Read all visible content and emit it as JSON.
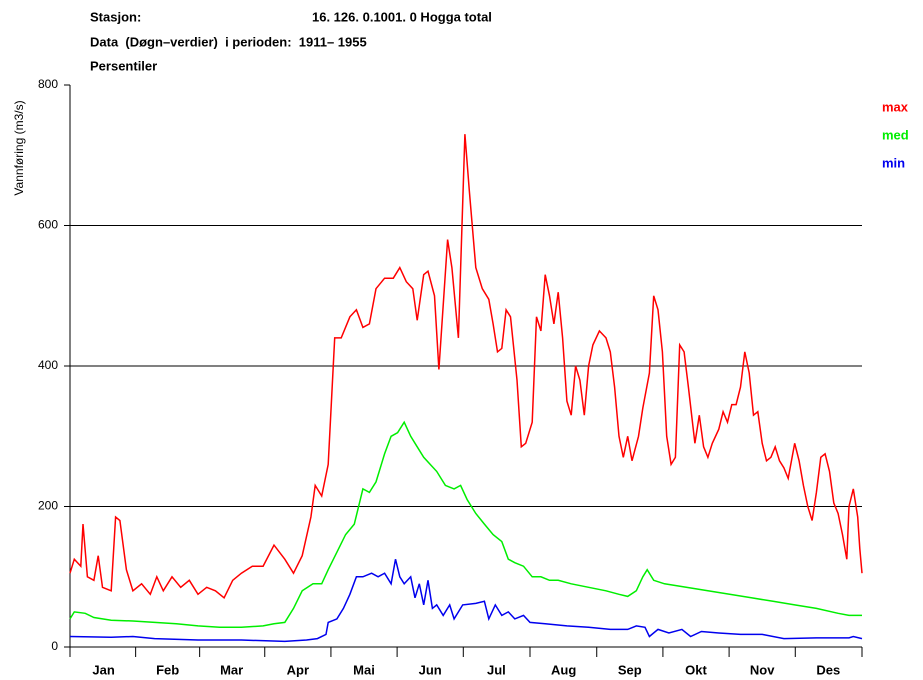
{
  "chart_data": {
    "type": "line",
    "title_lines": [
      [
        "Stasjon:",
        "16. 126. 0.1001. 0 Hogga total"
      ],
      [
        "Data  (Døgn–verdier)  i perioden:  1911– 1955"
      ],
      [
        "Persentiler"
      ]
    ],
    "ylabel": "Vannføring (m3/s)",
    "xlim": [
      1,
      366
    ],
    "ylim": [
      0,
      800
    ],
    "yticks": [
      0,
      200,
      400,
      600,
      800
    ],
    "grid": true,
    "xticks": [
      {
        "value": 16.5,
        "label": "Jan"
      },
      {
        "value": 46,
        "label": "Feb"
      },
      {
        "value": 75.5,
        "label": "Mar"
      },
      {
        "value": 106,
        "label": "Apr"
      },
      {
        "value": 136.5,
        "label": "Mai"
      },
      {
        "value": 167,
        "label": "Jun"
      },
      {
        "value": 197.5,
        "label": "Jul"
      },
      {
        "value": 228.5,
        "label": "Aug"
      },
      {
        "value": 259,
        "label": "Sep"
      },
      {
        "value": 289.5,
        "label": "Okt"
      },
      {
        "value": 320,
        "label": "Nov"
      },
      {
        "value": 350.5,
        "label": "Des"
      }
    ],
    "legend": "right",
    "series": [
      {
        "name": "max",
        "color": "#ff0000",
        "x": [
          1,
          3,
          6,
          7,
          9,
          12,
          14,
          16,
          20,
          22,
          24,
          27,
          30,
          34,
          38,
          41,
          44,
          48,
          52,
          56,
          60,
          64,
          68,
          72,
          76,
          80,
          85,
          90,
          95,
          100,
          104,
          108,
          112,
          114,
          117,
          120,
          123,
          126,
          130,
          133,
          136,
          139,
          142,
          146,
          150,
          153,
          156,
          159,
          161,
          164,
          166,
          169,
          171,
          175,
          177,
          180,
          183,
          185,
          188,
          191,
          194,
          196,
          198,
          200,
          202,
          204,
          207,
          209,
          211,
          214,
          216,
          218,
          220,
          222,
          224,
          226,
          228,
          230,
          232,
          234,
          236,
          238,
          240,
          242,
          245,
          248,
          250,
          252,
          254,
          256,
          258,
          260,
          263,
          265,
          268,
          270,
          272,
          274,
          276,
          278,
          280,
          282,
          284,
          286,
          289,
          291,
          293,
          295,
          297,
          300,
          302,
          304,
          306,
          308,
          310,
          312,
          314,
          316,
          318,
          320,
          322,
          324,
          326,
          328,
          330,
          332,
          335,
          337,
          339,
          341,
          343,
          345,
          347,
          349,
          351,
          353,
          355,
          357,
          359,
          360,
          362,
          364,
          365,
          366
        ],
        "values": [
          105,
          125,
          115,
          175,
          100,
          95,
          130,
          85,
          80,
          185,
          180,
          110,
          80,
          90,
          75,
          100,
          80,
          100,
          85,
          95,
          75,
          85,
          80,
          70,
          95,
          105,
          115,
          115,
          145,
          125,
          105,
          130,
          185,
          230,
          215,
          260,
          440,
          440,
          470,
          480,
          455,
          460,
          510,
          525,
          525,
          540,
          520,
          510,
          465,
          530,
          535,
          500,
          395,
          580,
          540,
          440,
          730,
          650,
          540,
          510,
          495,
          460,
          420,
          425,
          480,
          470,
          380,
          285,
          290,
          320,
          470,
          450,
          530,
          500,
          460,
          505,
          440,
          350,
          330,
          400,
          380,
          330,
          400,
          430,
          450,
          440,
          420,
          370,
          300,
          270,
          300,
          265,
          300,
          340,
          390,
          500,
          480,
          420,
          300,
          260,
          270,
          430,
          420,
          370,
          290,
          330,
          285,
          270,
          290,
          310,
          335,
          320,
          345,
          345,
          370,
          420,
          390,
          330,
          335,
          290,
          265,
          270,
          285,
          265,
          255,
          240,
          290,
          265,
          230,
          200,
          180,
          220,
          270,
          275,
          250,
          205,
          190,
          160,
          125,
          200,
          225,
          185,
          140,
          105
        ]
      },
      {
        "name": "med",
        "color": "#00ee00",
        "x": [
          1,
          3,
          8,
          12,
          20,
          30,
          40,
          50,
          60,
          70,
          80,
          90,
          95,
          100,
          104,
          108,
          113,
          117,
          120,
          124,
          128,
          132,
          136,
          139,
          142,
          146,
          149,
          152,
          155,
          158,
          161,
          164,
          167,
          170,
          174,
          178,
          181,
          184,
          188,
          192,
          196,
          200,
          203,
          206,
          210,
          214,
          218,
          222,
          226,
          232,
          240,
          248,
          254,
          258,
          262,
          265,
          267,
          270,
          275,
          285,
          295,
          305,
          315,
          325,
          335,
          345,
          355,
          360,
          366
        ],
        "values": [
          40,
          50,
          48,
          42,
          38,
          37,
          35,
          33,
          30,
          28,
          28,
          30,
          33,
          35,
          55,
          80,
          90,
          90,
          110,
          135,
          160,
          175,
          225,
          220,
          235,
          275,
          300,
          305,
          320,
          300,
          285,
          270,
          260,
          250,
          230,
          225,
          230,
          210,
          190,
          175,
          160,
          150,
          125,
          120,
          115,
          100,
          100,
          95,
          95,
          90,
          85,
          80,
          75,
          72,
          80,
          100,
          110,
          95,
          90,
          85,
          80,
          75,
          70,
          65,
          60,
          55,
          48,
          45,
          45
        ]
      },
      {
        "name": "min",
        "color": "#0000ee",
        "x": [
          1,
          20,
          30,
          40,
          60,
          80,
          100,
          110,
          115,
          119,
          120,
          124,
          127,
          130,
          133,
          136,
          140,
          143,
          146,
          149,
          151,
          153,
          155,
          158,
          160,
          162,
          164,
          166,
          168,
          170,
          173,
          176,
          178,
          182,
          188,
          192,
          194,
          197,
          200,
          203,
          206,
          210,
          213,
          220,
          230,
          240,
          250,
          258,
          262,
          266,
          268,
          272,
          277,
          283,
          287,
          292,
          300,
          310,
          320,
          330,
          345,
          360,
          362,
          366
        ],
        "values": [
          15,
          14,
          15,
          12,
          10,
          10,
          8,
          10,
          12,
          18,
          35,
          40,
          55,
          75,
          100,
          100,
          105,
          100,
          105,
          90,
          125,
          100,
          90,
          100,
          70,
          90,
          60,
          95,
          55,
          60,
          45,
          60,
          40,
          60,
          62,
          65,
          40,
          60,
          45,
          50,
          40,
          45,
          35,
          33,
          30,
          28,
          25,
          25,
          30,
          28,
          15,
          25,
          20,
          25,
          15,
          22,
          20,
          18,
          18,
          12,
          13,
          13,
          15,
          12
        ]
      }
    ]
  }
}
